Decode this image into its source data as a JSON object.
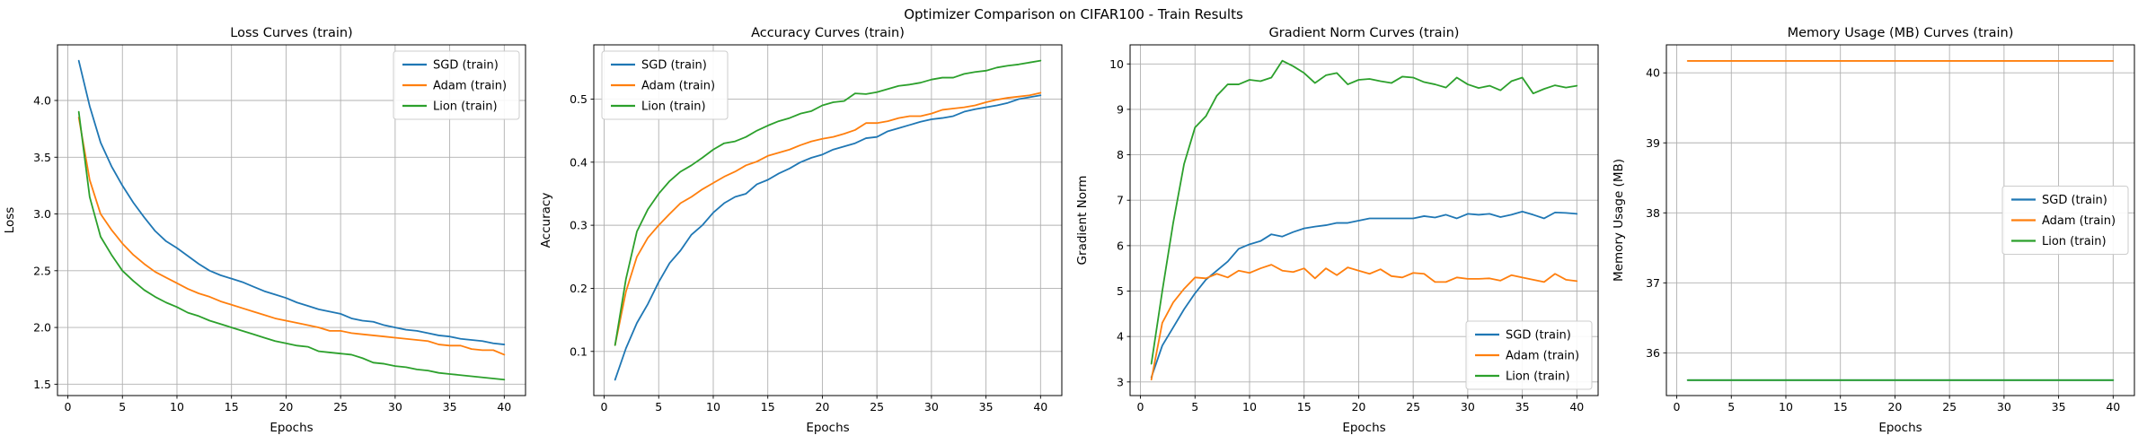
{
  "figure": {
    "suptitle": "Optimizer Comparison on CIFAR100 - Train Results"
  },
  "colors": {
    "sgd": "#1f77b4",
    "adam": "#ff7f0e",
    "lion": "#2ca02c",
    "grid": "#b0b0b0",
    "spine": "#000000",
    "legend_border": "#cccccc",
    "background": "#ffffff"
  },
  "chart_data": [
    {
      "type": "line",
      "title": "Loss Curves (train)",
      "xlabel": "Epochs",
      "ylabel": "Loss",
      "legend_loc": "upper-right",
      "grid": true,
      "xlim": [
        -0.95,
        41.95
      ],
      "ylim": [
        1.4,
        4.49
      ],
      "xticks": [
        0,
        5,
        10,
        15,
        20,
        25,
        30,
        35,
        40
      ],
      "xtick_labels": [
        "0",
        "5",
        "10",
        "15",
        "20",
        "25",
        "30",
        "35",
        "40"
      ],
      "yticks": [
        1.5,
        2.0,
        2.5,
        3.0,
        3.5,
        4.0
      ],
      "ytick_labels": [
        "1.5",
        "2.0",
        "2.5",
        "3.0",
        "3.5",
        "4.0"
      ],
      "x": [
        1,
        2,
        3,
        4,
        5,
        6,
        7,
        8,
        9,
        10,
        11,
        12,
        13,
        14,
        15,
        16,
        17,
        18,
        19,
        20,
        21,
        22,
        23,
        24,
        25,
        26,
        27,
        28,
        29,
        30,
        31,
        32,
        33,
        34,
        35,
        36,
        37,
        38,
        39,
        40
      ],
      "series": [
        {
          "name": "SGD (train)",
          "color": "#1f77b4",
          "values": [
            4.35,
            3.95,
            3.63,
            3.42,
            3.25,
            3.1,
            2.97,
            2.85,
            2.76,
            2.7,
            2.63,
            2.56,
            2.5,
            2.46,
            2.43,
            2.4,
            2.36,
            2.32,
            2.29,
            2.26,
            2.22,
            2.19,
            2.16,
            2.14,
            2.12,
            2.08,
            2.06,
            2.05,
            2.02,
            2.0,
            1.98,
            1.97,
            1.95,
            1.93,
            1.92,
            1.9,
            1.89,
            1.88,
            1.86,
            1.85
          ]
        },
        {
          "name": "Adam (train)",
          "color": "#ff7f0e",
          "values": [
            3.85,
            3.3,
            3.0,
            2.86,
            2.74,
            2.64,
            2.56,
            2.49,
            2.44,
            2.39,
            2.34,
            2.3,
            2.27,
            2.23,
            2.2,
            2.17,
            2.14,
            2.11,
            2.08,
            2.06,
            2.04,
            2.02,
            2.0,
            1.97,
            1.97,
            1.95,
            1.94,
            1.93,
            1.92,
            1.91,
            1.9,
            1.89,
            1.88,
            1.85,
            1.84,
            1.84,
            1.81,
            1.8,
            1.8,
            1.76
          ]
        },
        {
          "name": "Lion (train)",
          "color": "#2ca02c",
          "values": [
            3.9,
            3.15,
            2.8,
            2.64,
            2.5,
            2.41,
            2.33,
            2.27,
            2.22,
            2.18,
            2.13,
            2.1,
            2.06,
            2.03,
            2.0,
            1.97,
            1.94,
            1.91,
            1.88,
            1.86,
            1.84,
            1.83,
            1.79,
            1.78,
            1.77,
            1.76,
            1.73,
            1.69,
            1.68,
            1.66,
            1.65,
            1.63,
            1.62,
            1.6,
            1.59,
            1.58,
            1.57,
            1.56,
            1.55,
            1.54
          ]
        }
      ]
    },
    {
      "type": "line",
      "title": "Accuracy Curves (train)",
      "xlabel": "Epochs",
      "ylabel": "Accuracy",
      "legend_loc": "upper-left",
      "grid": true,
      "xlim": [
        -0.95,
        41.95
      ],
      "ylim": [
        0.03,
        0.586
      ],
      "xticks": [
        0,
        5,
        10,
        15,
        20,
        25,
        30,
        35,
        40
      ],
      "xtick_labels": [
        "0",
        "5",
        "10",
        "15",
        "20",
        "25",
        "30",
        "35",
        "40"
      ],
      "yticks": [
        0.1,
        0.2,
        0.3,
        0.4,
        0.5
      ],
      "ytick_labels": [
        "0.1",
        "0.2",
        "0.3",
        "0.4",
        "0.5"
      ],
      "x": [
        1,
        2,
        3,
        4,
        5,
        6,
        7,
        8,
        9,
        10,
        11,
        12,
        13,
        14,
        15,
        16,
        17,
        18,
        19,
        20,
        21,
        22,
        23,
        24,
        25,
        26,
        27,
        28,
        29,
        30,
        31,
        32,
        33,
        34,
        35,
        36,
        37,
        38,
        39,
        40
      ],
      "series": [
        {
          "name": "SGD (train)",
          "color": "#1f77b4",
          "values": [
            0.055,
            0.105,
            0.145,
            0.175,
            0.21,
            0.24,
            0.26,
            0.285,
            0.3,
            0.32,
            0.335,
            0.345,
            0.35,
            0.365,
            0.372,
            0.382,
            0.39,
            0.4,
            0.407,
            0.412,
            0.42,
            0.425,
            0.43,
            0.438,
            0.44,
            0.449,
            0.454,
            0.459,
            0.464,
            0.468,
            0.47,
            0.473,
            0.48,
            0.484,
            0.487,
            0.49,
            0.494,
            0.5,
            0.503,
            0.506
          ]
        },
        {
          "name": "Adam (train)",
          "color": "#ff7f0e",
          "values": [
            0.11,
            0.195,
            0.25,
            0.28,
            0.3,
            0.318,
            0.335,
            0.345,
            0.357,
            0.367,
            0.377,
            0.385,
            0.395,
            0.401,
            0.41,
            0.415,
            0.42,
            0.427,
            0.433,
            0.437,
            0.44,
            0.445,
            0.451,
            0.462,
            0.462,
            0.465,
            0.47,
            0.473,
            0.473,
            0.477,
            0.483,
            0.485,
            0.487,
            0.49,
            0.495,
            0.499,
            0.502,
            0.504,
            0.506,
            0.51
          ]
        },
        {
          "name": "Lion (train)",
          "color": "#2ca02c",
          "values": [
            0.11,
            0.215,
            0.29,
            0.325,
            0.35,
            0.37,
            0.385,
            0.395,
            0.407,
            0.42,
            0.43,
            0.433,
            0.44,
            0.45,
            0.458,
            0.465,
            0.47,
            0.477,
            0.481,
            0.49,
            0.495,
            0.497,
            0.509,
            0.508,
            0.511,
            0.516,
            0.521,
            0.523,
            0.526,
            0.531,
            0.534,
            0.534,
            0.54,
            0.543,
            0.545,
            0.55,
            0.553,
            0.555,
            0.558,
            0.561
          ]
        }
      ]
    },
    {
      "type": "line",
      "title": "Gradient Norm Curves (train)",
      "xlabel": "Epochs",
      "ylabel": "Gradient Norm",
      "legend_loc": "lower-right",
      "grid": true,
      "xlim": [
        -0.95,
        41.95
      ],
      "ylim": [
        2.7,
        10.42
      ],
      "xticks": [
        0,
        5,
        10,
        15,
        20,
        25,
        30,
        35,
        40
      ],
      "xtick_labels": [
        "0",
        "5",
        "10",
        "15",
        "20",
        "25",
        "30",
        "35",
        "40"
      ],
      "yticks": [
        3,
        4,
        5,
        6,
        7,
        8,
        9,
        10
      ],
      "ytick_labels": [
        "3",
        "4",
        "5",
        "6",
        "7",
        "8",
        "9",
        "10"
      ],
      "x": [
        1,
        2,
        3,
        4,
        5,
        6,
        7,
        8,
        9,
        10,
        11,
        12,
        13,
        14,
        15,
        16,
        17,
        18,
        19,
        20,
        21,
        22,
        23,
        24,
        25,
        26,
        27,
        28,
        29,
        30,
        31,
        32,
        33,
        34,
        35,
        36,
        37,
        38,
        39,
        40
      ],
      "series": [
        {
          "name": "SGD (train)",
          "color": "#1f77b4",
          "values": [
            3.1,
            3.8,
            4.2,
            4.6,
            4.95,
            5.25,
            5.45,
            5.65,
            5.93,
            6.03,
            6.1,
            6.25,
            6.2,
            6.3,
            6.38,
            6.42,
            6.45,
            6.5,
            6.5,
            6.55,
            6.6,
            6.6,
            6.6,
            6.6,
            6.6,
            6.65,
            6.62,
            6.68,
            6.6,
            6.7,
            6.68,
            6.7,
            6.63,
            6.68,
            6.75,
            6.68,
            6.6,
            6.73,
            6.72,
            6.7
          ]
        },
        {
          "name": "Adam (train)",
          "color": "#ff7f0e",
          "values": [
            3.05,
            4.3,
            4.75,
            5.05,
            5.3,
            5.28,
            5.38,
            5.3,
            5.45,
            5.4,
            5.5,
            5.58,
            5.45,
            5.42,
            5.5,
            5.28,
            5.5,
            5.35,
            5.52,
            5.45,
            5.38,
            5.48,
            5.33,
            5.3,
            5.4,
            5.38,
            5.2,
            5.2,
            5.3,
            5.27,
            5.27,
            5.28,
            5.23,
            5.35,
            5.3,
            5.25,
            5.2,
            5.38,
            5.25,
            5.22
          ]
        },
        {
          "name": "Lion (train)",
          "color": "#2ca02c",
          "values": [
            3.4,
            5.0,
            6.5,
            7.8,
            8.6,
            8.85,
            9.3,
            9.55,
            9.55,
            9.65,
            9.62,
            9.7,
            10.07,
            9.95,
            9.8,
            9.58,
            9.75,
            9.8,
            9.55,
            9.65,
            9.67,
            9.62,
            9.58,
            9.72,
            9.7,
            9.6,
            9.55,
            9.48,
            9.7,
            9.55,
            9.47,
            9.52,
            9.42,
            9.62,
            9.7,
            9.35,
            9.45,
            9.53,
            9.48,
            9.52
          ]
        }
      ]
    },
    {
      "type": "line",
      "title": "Memory Usage (MB) Curves (train)",
      "xlabel": "Epochs",
      "ylabel": "Memory Usage (MB)",
      "legend_loc": "center-right",
      "grid": true,
      "xlim": [
        -0.95,
        41.95
      ],
      "ylim": [
        35.39,
        40.4
      ],
      "xticks": [
        0,
        5,
        10,
        15,
        20,
        25,
        30,
        35,
        40
      ],
      "xtick_labels": [
        "0",
        "5",
        "10",
        "15",
        "20",
        "25",
        "30",
        "35",
        "40"
      ],
      "yticks": [
        36,
        37,
        38,
        39,
        40
      ],
      "ytick_labels": [
        "36",
        "37",
        "38",
        "39",
        "40"
      ],
      "x": [
        1,
        2,
        3,
        4,
        5,
        6,
        7,
        8,
        9,
        10,
        11,
        12,
        13,
        14,
        15,
        16,
        17,
        18,
        19,
        20,
        21,
        22,
        23,
        24,
        25,
        26,
        27,
        28,
        29,
        30,
        31,
        32,
        33,
        34,
        35,
        36,
        37,
        38,
        39,
        40
      ],
      "series": [
        {
          "name": "SGD (train)",
          "color": "#1f77b4",
          "values": 35.61
        },
        {
          "name": "Adam (train)",
          "color": "#ff7f0e",
          "values": 40.17
        },
        {
          "name": "Lion (train)",
          "color": "#2ca02c",
          "values": 35.61
        }
      ]
    }
  ]
}
